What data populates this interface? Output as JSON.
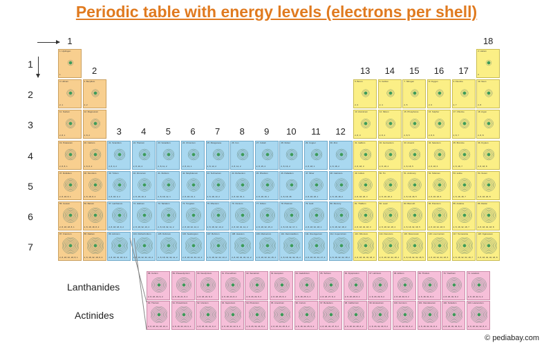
{
  "title": "Periodic table with energy levels (electrons per shell)",
  "groups": [
    "1",
    "2",
    "3",
    "4",
    "5",
    "6",
    "7",
    "8",
    "9",
    "10",
    "11",
    "12",
    "13",
    "14",
    "15",
    "16",
    "17",
    "18"
  ],
  "periods": [
    "1",
    "2",
    "3",
    "4",
    "5",
    "6",
    "7"
  ],
  "series_labels": {
    "lanthanides": "Lanthanides",
    "actinides": "Actinides"
  },
  "credit": "© pediabay.com",
  "colors": {
    "s_block": "#f8cf8f",
    "d_block": "#a9d8f0",
    "p_block": "#fbef86",
    "f_block": "#f6bfd9",
    "title": "#e07a1f"
  },
  "elements": [
    {
      "n": 1,
      "name": "Hydrogen",
      "shells": "1",
      "period": 1,
      "group": 1,
      "block": "s"
    },
    {
      "n": 2,
      "name": "Helium",
      "shells": "2",
      "period": 1,
      "group": 18,
      "block": "p"
    },
    {
      "n": 3,
      "name": "Lithium",
      "shells": "2, 1",
      "period": 2,
      "group": 1,
      "block": "s"
    },
    {
      "n": 4,
      "name": "Beryllium",
      "shells": "2, 2",
      "period": 2,
      "group": 2,
      "block": "s"
    },
    {
      "n": 5,
      "name": "Boron",
      "shells": "2, 3",
      "period": 2,
      "group": 13,
      "block": "p"
    },
    {
      "n": 6,
      "name": "Carbon",
      "shells": "2, 4",
      "period": 2,
      "group": 14,
      "block": "p"
    },
    {
      "n": 7,
      "name": "Nitrogen",
      "shells": "2, 5",
      "period": 2,
      "group": 15,
      "block": "p"
    },
    {
      "n": 8,
      "name": "Oxygen",
      "shells": "2, 6",
      "period": 2,
      "group": 16,
      "block": "p"
    },
    {
      "n": 9,
      "name": "Fluorine",
      "shells": "2, 7",
      "period": 2,
      "group": 17,
      "block": "p"
    },
    {
      "n": 10,
      "name": "Neon",
      "shells": "2, 8",
      "period": 2,
      "group": 18,
      "block": "p"
    },
    {
      "n": 11,
      "name": "Sodium",
      "shells": "2, 8, 1",
      "period": 3,
      "group": 1,
      "block": "s"
    },
    {
      "n": 12,
      "name": "Magnesium",
      "shells": "2, 8, 2",
      "period": 3,
      "group": 2,
      "block": "s"
    },
    {
      "n": 13,
      "name": "Aluminium",
      "shells": "2, 8, 3",
      "period": 3,
      "group": 13,
      "block": "p"
    },
    {
      "n": 14,
      "name": "Silicon",
      "shells": "2, 8, 4",
      "period": 3,
      "group": 14,
      "block": "p"
    },
    {
      "n": 15,
      "name": "Phosphorus",
      "shells": "2, 8, 5",
      "period": 3,
      "group": 15,
      "block": "p"
    },
    {
      "n": 16,
      "name": "Sulphur",
      "shells": "2, 8, 6",
      "period": 3,
      "group": 16,
      "block": "p"
    },
    {
      "n": 17,
      "name": "Chlorine",
      "shells": "2, 8, 7",
      "period": 3,
      "group": 17,
      "block": "p"
    },
    {
      "n": 18,
      "name": "Argon",
      "shells": "2, 8, 8",
      "period": 3,
      "group": 18,
      "block": "p"
    },
    {
      "n": 19,
      "name": "Potassium",
      "shells": "2, 8, 8, 1",
      "period": 4,
      "group": 1,
      "block": "s"
    },
    {
      "n": 20,
      "name": "Calcium",
      "shells": "2, 8, 8, 2",
      "period": 4,
      "group": 2,
      "block": "s"
    },
    {
      "n": 21,
      "name": "Scandium",
      "shells": "2, 8, 9, 2",
      "period": 4,
      "group": 3,
      "block": "d"
    },
    {
      "n": 22,
      "name": "Titanium",
      "shells": "2, 8, 10, 2",
      "period": 4,
      "group": 4,
      "block": "d"
    },
    {
      "n": 23,
      "name": "Vanadium",
      "shells": "2, 8, 11, 2",
      "period": 4,
      "group": 5,
      "block": "d"
    },
    {
      "n": 24,
      "name": "Chromium",
      "shells": "2, 8, 13, 1",
      "period": 4,
      "group": 6,
      "block": "d"
    },
    {
      "n": 25,
      "name": "Manganese",
      "shells": "2, 8, 13, 2",
      "period": 4,
      "group": 7,
      "block": "d"
    },
    {
      "n": 26,
      "name": "Iron",
      "shells": "2, 8, 14, 2",
      "period": 4,
      "group": 8,
      "block": "d"
    },
    {
      "n": 27,
      "name": "Cobalt",
      "shells": "2, 8, 15, 2",
      "period": 4,
      "group": 9,
      "block": "d"
    },
    {
      "n": 28,
      "name": "Nickel",
      "shells": "2, 8, 16, 2",
      "period": 4,
      "group": 10,
      "block": "d"
    },
    {
      "n": 29,
      "name": "Copper",
      "shells": "2, 8, 18, 1",
      "period": 4,
      "group": 11,
      "block": "d"
    },
    {
      "n": 30,
      "name": "Zinc",
      "shells": "2, 8, 18, 2",
      "period": 4,
      "group": 12,
      "block": "d"
    },
    {
      "n": 31,
      "name": "Gallium",
      "shells": "2, 8, 18, 3",
      "period": 4,
      "group": 13,
      "block": "p"
    },
    {
      "n": 32,
      "name": "Germanium",
      "shells": "2, 8, 18, 4",
      "period": 4,
      "group": 14,
      "block": "p"
    },
    {
      "n": 33,
      "name": "Arsenic",
      "shells": "2, 8, 18, 5",
      "period": 4,
      "group": 15,
      "block": "p"
    },
    {
      "n": 34,
      "name": "Selenium",
      "shells": "2, 8, 18, 6",
      "period": 4,
      "group": 16,
      "block": "p"
    },
    {
      "n": 35,
      "name": "Bromine",
      "shells": "2, 8, 18, 7",
      "period": 4,
      "group": 17,
      "block": "p"
    },
    {
      "n": 36,
      "name": "Krypton",
      "shells": "2, 8, 18, 8",
      "period": 4,
      "group": 18,
      "block": "p"
    },
    {
      "n": 37,
      "name": "Rubidium",
      "shells": "2, 8, 18, 8, 1",
      "period": 5,
      "group": 1,
      "block": "s"
    },
    {
      "n": 38,
      "name": "Strontium",
      "shells": "2, 8, 18, 8, 2",
      "period": 5,
      "group": 2,
      "block": "s"
    },
    {
      "n": 39,
      "name": "Yttrium",
      "shells": "2, 8, 18, 9, 2",
      "period": 5,
      "group": 3,
      "block": "d"
    },
    {
      "n": 40,
      "name": "Zirconium",
      "shells": "2, 8, 18, 10, 2",
      "period": 5,
      "group": 4,
      "block": "d"
    },
    {
      "n": 41,
      "name": "Niobium",
      "shells": "2, 8, 18, 12, 1",
      "period": 5,
      "group": 5,
      "block": "d"
    },
    {
      "n": 42,
      "name": "Molybdenum",
      "shells": "2, 8, 18, 13, 1",
      "period": 5,
      "group": 6,
      "block": "d"
    },
    {
      "n": 43,
      "name": "Technetium",
      "shells": "2, 8, 18, 13, 2",
      "period": 5,
      "group": 7,
      "block": "d"
    },
    {
      "n": 44,
      "name": "Ruthenium",
      "shells": "2, 8, 18, 15, 1",
      "period": 5,
      "group": 8,
      "block": "d"
    },
    {
      "n": 45,
      "name": "Rhodium",
      "shells": "2, 8, 18, 16, 1",
      "period": 5,
      "group": 9,
      "block": "d"
    },
    {
      "n": 46,
      "name": "Palladium",
      "shells": "2, 8, 18, 18",
      "period": 5,
      "group": 10,
      "block": "d"
    },
    {
      "n": 47,
      "name": "Silver",
      "shells": "2, 8, 18, 18, 1",
      "period": 5,
      "group": 11,
      "block": "d"
    },
    {
      "n": 48,
      "name": "Cadmium",
      "shells": "2, 8, 18, 18, 2",
      "period": 5,
      "group": 12,
      "block": "d"
    },
    {
      "n": 49,
      "name": "Indium",
      "shells": "2, 8, 18, 18, 3",
      "period": 5,
      "group": 13,
      "block": "p"
    },
    {
      "n": 50,
      "name": "Tin",
      "shells": "2, 8, 18, 18, 4",
      "period": 5,
      "group": 14,
      "block": "p"
    },
    {
      "n": 51,
      "name": "Antimony",
      "shells": "2, 8, 18, 18, 5",
      "period": 5,
      "group": 15,
      "block": "p"
    },
    {
      "n": 52,
      "name": "Tellurium",
      "shells": "2, 8, 18, 18, 6",
      "period": 5,
      "group": 16,
      "block": "p"
    },
    {
      "n": 53,
      "name": "Iodine",
      "shells": "2, 8, 18, 18, 7",
      "period": 5,
      "group": 17,
      "block": "p"
    },
    {
      "n": 54,
      "name": "Xenon",
      "shells": "2, 8, 18, 18, 8",
      "period": 5,
      "group": 18,
      "block": "p"
    },
    {
      "n": 55,
      "name": "Cesium",
      "shells": "2, 8, 18, 18, 8, 1",
      "period": 6,
      "group": 1,
      "block": "s"
    },
    {
      "n": 56,
      "name": "Barium",
      "shells": "2, 8, 18, 18, 8, 2",
      "period": 6,
      "group": 2,
      "block": "s"
    },
    {
      "n": 57,
      "name": "Lanthanum",
      "shells": "2, 8, 18, 18, 9, 2",
      "period": 6,
      "group": 3,
      "block": "d"
    },
    {
      "n": 72,
      "name": "Hafnium",
      "shells": "2, 8, 18, 32, 10, 2",
      "period": 6,
      "group": 4,
      "block": "d"
    },
    {
      "n": 73,
      "name": "Tantalum",
      "shells": "2, 8, 18, 32, 11, 2",
      "period": 6,
      "group": 5,
      "block": "d"
    },
    {
      "n": 74,
      "name": "Tungsten",
      "shells": "2, 8, 18, 32, 12, 2",
      "period": 6,
      "group": 6,
      "block": "d"
    },
    {
      "n": 75,
      "name": "Rhenium",
      "shells": "2, 8, 18, 32, 13, 2",
      "period": 6,
      "group": 7,
      "block": "d"
    },
    {
      "n": 76,
      "name": "Osmium",
      "shells": "2, 8, 18, 32, 14, 2",
      "period": 6,
      "group": 8,
      "block": "d"
    },
    {
      "n": 77,
      "name": "Iridium",
      "shells": "2, 8, 18, 32, 15, 2",
      "period": 6,
      "group": 9,
      "block": "d"
    },
    {
      "n": 78,
      "name": "Platinum",
      "shells": "2, 8, 18, 32, 17, 1",
      "period": 6,
      "group": 10,
      "block": "d"
    },
    {
      "n": 79,
      "name": "Gold",
      "shells": "2, 8, 18, 32, 18, 1",
      "period": 6,
      "group": 11,
      "block": "d"
    },
    {
      "n": 80,
      "name": "Mercury",
      "shells": "2, 8, 18, 32, 18, 2",
      "period": 6,
      "group": 12,
      "block": "d"
    },
    {
      "n": 81,
      "name": "Thallium",
      "shells": "2, 8, 18, 32, 18, 3",
      "period": 6,
      "group": 13,
      "block": "p"
    },
    {
      "n": 82,
      "name": "Lead",
      "shells": "2, 8, 18, 32, 18, 4",
      "period": 6,
      "group": 14,
      "block": "p"
    },
    {
      "n": 83,
      "name": "Bismuth",
      "shells": "2, 8, 18, 32, 18, 5",
      "period": 6,
      "group": 15,
      "block": "p"
    },
    {
      "n": 84,
      "name": "Polonium",
      "shells": "2, 8, 18, 32, 18, 6",
      "period": 6,
      "group": 16,
      "block": "p"
    },
    {
      "n": 85,
      "name": "Astatine",
      "shells": "2, 8, 18, 32, 18, 7",
      "period": 6,
      "group": 17,
      "block": "p"
    },
    {
      "n": 86,
      "name": "Radon",
      "shells": "2, 8, 18, 32, 18, 8",
      "period": 6,
      "group": 18,
      "block": "p"
    },
    {
      "n": 87,
      "name": "Francium",
      "shells": "2, 8, 18, 32, 18, 8, 1",
      "period": 7,
      "group": 1,
      "block": "s"
    },
    {
      "n": 88,
      "name": "Radium",
      "shells": "2, 8, 18, 32, 18, 8, 2",
      "period": 7,
      "group": 2,
      "block": "s"
    },
    {
      "n": 89,
      "name": "Actinium",
      "shells": "2, 8, 18, 32, 18, 9, 2",
      "period": 7,
      "group": 3,
      "block": "d"
    },
    {
      "n": 104,
      "name": "Rutherfordium",
      "shells": "2, 8, 18, 32, 32, 10, 2",
      "period": 7,
      "group": 4,
      "block": "d"
    },
    {
      "n": 105,
      "name": "Dubnium",
      "shells": "2, 8, 18, 32, 32, 11, 2",
      "period": 7,
      "group": 5,
      "block": "d"
    },
    {
      "n": 106,
      "name": "Seaborgium",
      "shells": "2, 8, 18, 32, 32, 12, 2",
      "period": 7,
      "group": 6,
      "block": "d"
    },
    {
      "n": 107,
      "name": "Bohrium",
      "shells": "2, 8, 18, 32, 32, 13, 2",
      "period": 7,
      "group": 7,
      "block": "d"
    },
    {
      "n": 108,
      "name": "Hassium",
      "shells": "2, 8, 18, 32, 32, 14, 2",
      "period": 7,
      "group": 8,
      "block": "d"
    },
    {
      "n": 109,
      "name": "Meitnerium",
      "shells": "2, 8, 18, 32, 32, 15, 2",
      "period": 7,
      "group": 9,
      "block": "d"
    },
    {
      "n": 110,
      "name": "Darmstadtium",
      "shells": "2, 8, 18, 32, 32, 16, 2",
      "period": 7,
      "group": 10,
      "block": "d"
    },
    {
      "n": 111,
      "name": "Roentgenium",
      "shells": "2, 8, 18, 32, 32, 17, 2",
      "period": 7,
      "group": 11,
      "block": "d"
    },
    {
      "n": 112,
      "name": "Copernicium",
      "shells": "2, 8, 18, 32, 32, 18, 2",
      "period": 7,
      "group": 12,
      "block": "d"
    },
    {
      "n": 113,
      "name": "Nihonium",
      "shells": "2, 8, 18, 32, 32, 18, 3",
      "period": 7,
      "group": 13,
      "block": "p"
    },
    {
      "n": 114,
      "name": "Flerovium",
      "shells": "2, 8, 18, 32, 32, 18, 4",
      "period": 7,
      "group": 14,
      "block": "p"
    },
    {
      "n": 115,
      "name": "Moscovium",
      "shells": "2, 8, 18, 32, 32, 18, 5",
      "period": 7,
      "group": 15,
      "block": "p"
    },
    {
      "n": 116,
      "name": "Livermorium",
      "shells": "2, 8, 18, 32, 32, 18, 6",
      "period": 7,
      "group": 16,
      "block": "p"
    },
    {
      "n": 117,
      "name": "Tennessine",
      "shells": "2, 8, 18, 32, 32, 18, 7",
      "period": 7,
      "group": 17,
      "block": "p"
    },
    {
      "n": 118,
      "name": "Oganesson",
      "shells": "2, 8, 18, 32, 32, 18, 8",
      "period": 7,
      "group": 18,
      "block": "p"
    }
  ],
  "lanthanides": [
    {
      "n": 58,
      "name": "Cerium",
      "shells": "2, 8, 18, 19, 9, 2"
    },
    {
      "n": 59,
      "name": "Praseodymium",
      "shells": "2, 8, 18, 21, 8, 2"
    },
    {
      "n": 60,
      "name": "Neodymium",
      "shells": "2, 8, 18, 22, 8, 2"
    },
    {
      "n": 61,
      "name": "Promethium",
      "shells": "2, 8, 18, 23, 8, 2"
    },
    {
      "n": 62,
      "name": "Samarium",
      "shells": "2, 8, 18, 24, 8, 2"
    },
    {
      "n": 63,
      "name": "Europium",
      "shells": "2, 8, 18, 25, 8, 2"
    },
    {
      "n": 64,
      "name": "Gadolinium",
      "shells": "2, 8, 18, 25, 9, 2"
    },
    {
      "n": 65,
      "name": "Terbium",
      "shells": "2, 8, 18, 27, 8, 2"
    },
    {
      "n": 66,
      "name": "Dysprosium",
      "shells": "2, 8, 18, 28, 8, 2"
    },
    {
      "n": 67,
      "name": "Holmium",
      "shells": "2, 8, 18, 29, 8, 2"
    },
    {
      "n": 68,
      "name": "Erbium",
      "shells": "2, 8, 18, 30, 8, 2"
    },
    {
      "n": 69,
      "name": "Thulium",
      "shells": "2, 8, 18, 31, 8, 2"
    },
    {
      "n": 70,
      "name": "Ytterbium",
      "shells": "2, 8, 18, 32, 8, 2"
    },
    {
      "n": 71,
      "name": "Lutetium",
      "shells": "2, 8, 18, 32, 9, 2"
    }
  ],
  "actinides": [
    {
      "n": 90,
      "name": "Thorium",
      "shells": "2, 8, 18, 32, 18, 10, 2"
    },
    {
      "n": 91,
      "name": "Protactinium",
      "shells": "2, 8, 18, 32, 20, 9, 2"
    },
    {
      "n": 92,
      "name": "Uranium",
      "shells": "2, 8, 18, 32, 21, 9, 2"
    },
    {
      "n": 93,
      "name": "Neptunium",
      "shells": "2, 8, 18, 32, 22, 9, 2"
    },
    {
      "n": 94,
      "name": "Plutonium",
      "shells": "2, 8, 18, 32, 24, 8, 2"
    },
    {
      "n": 95,
      "name": "Americium",
      "shells": "2, 8, 18, 32, 25, 8, 2"
    },
    {
      "n": 96,
      "name": "Curium",
      "shells": "2, 8, 18, 32, 25, 9, 2"
    },
    {
      "n": 97,
      "name": "Berkelium",
      "shells": "2, 8, 18, 32, 27, 8, 2"
    },
    {
      "n": 98,
      "name": "Californium",
      "shells": "2, 8, 18, 32, 28, 8, 2"
    },
    {
      "n": 99,
      "name": "Einsteinium",
      "shells": "2, 8, 18, 32, 29, 8, 2"
    },
    {
      "n": 100,
      "name": "Fermium",
      "shells": "2, 8, 18, 32, 30, 8, 2"
    },
    {
      "n": 101,
      "name": "Mendelevium",
      "shells": "2, 8, 18, 32, 31, 8, 2"
    },
    {
      "n": 102,
      "name": "Nobelium",
      "shells": "2, 8, 18, 32, 32, 8, 2"
    },
    {
      "n": 103,
      "name": "Lawrencium",
      "shells": "2, 8, 18, 32, 32, 8, 3"
    }
  ]
}
